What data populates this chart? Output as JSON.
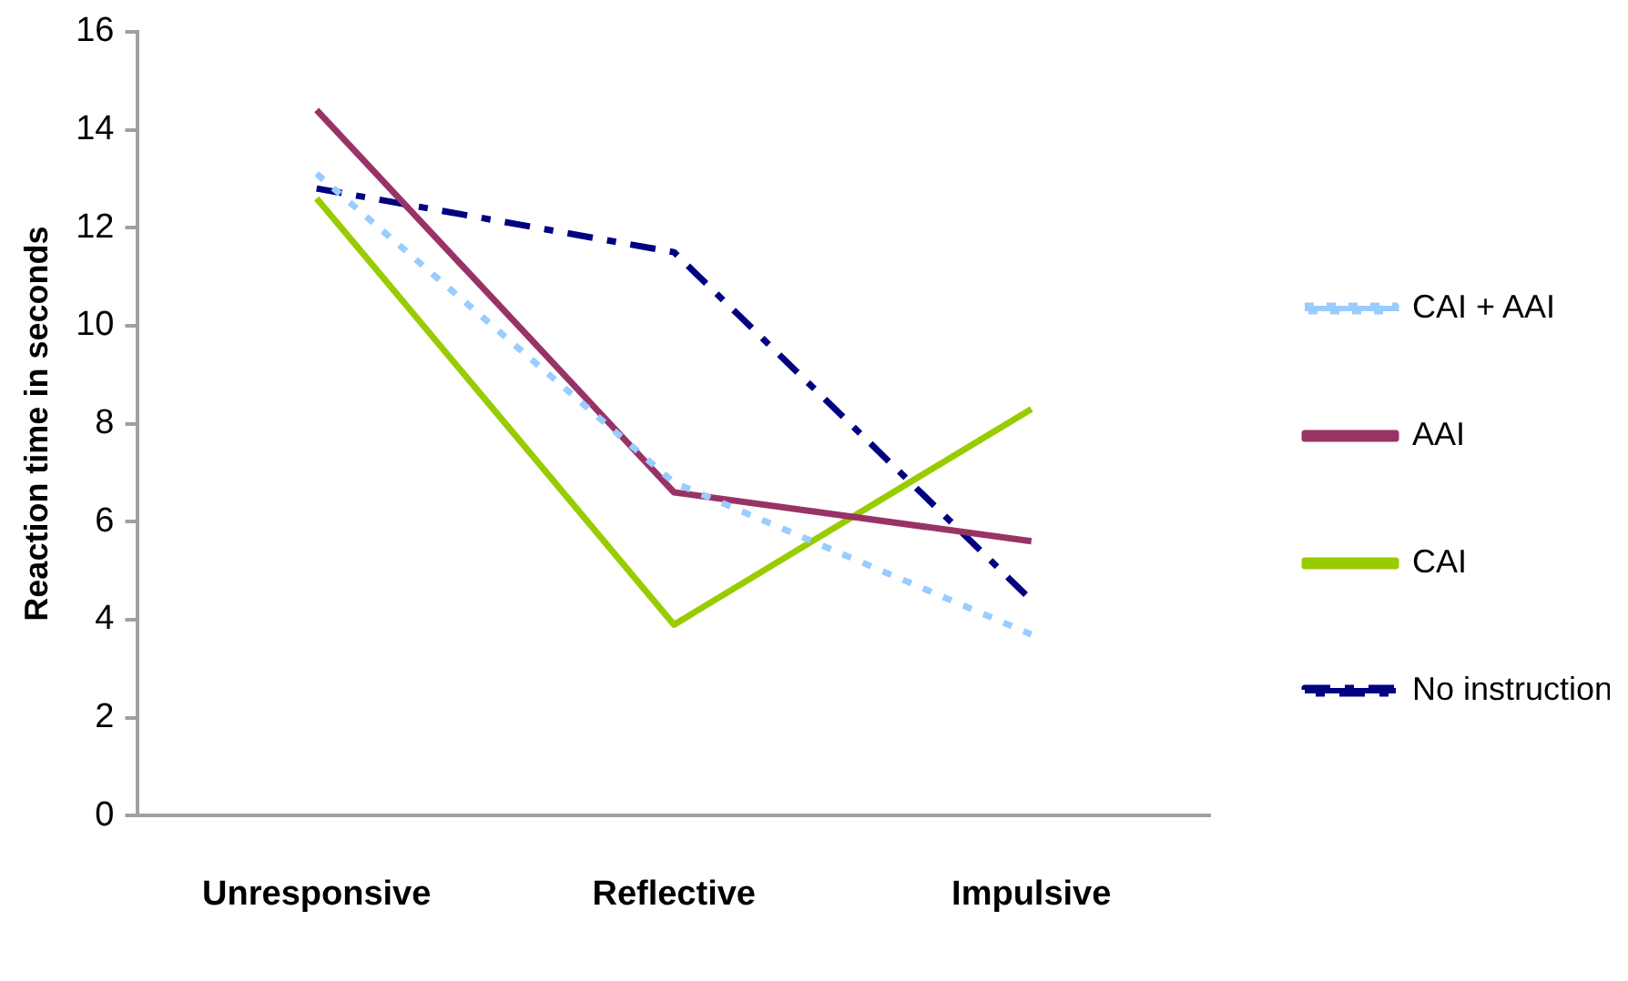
{
  "chart_data": {
    "type": "line",
    "ylabel": "Reaction time in seconds",
    "categories": [
      "Unresponsive",
      "Reflective",
      "Impulsive"
    ],
    "series": [
      {
        "name": "CAI + AAI",
        "color": "#99ccff",
        "line_style": "dotted",
        "values": [
          13.1,
          6.8,
          3.7
        ]
      },
      {
        "name": "AAI",
        "color": "#993366",
        "line_style": "solid",
        "values": [
          14.4,
          6.6,
          5.6
        ]
      },
      {
        "name": "CAI",
        "color": "#99cc00",
        "line_style": "solid",
        "values": [
          12.6,
          3.9,
          8.3
        ]
      },
      {
        "name": "No instruction",
        "color": "#000080",
        "line_style": "dashed",
        "values": [
          12.8,
          11.5,
          4.4
        ]
      }
    ],
    "ylim": [
      0,
      16
    ],
    "yticks": [
      0,
      2,
      4,
      6,
      8,
      10,
      12,
      14,
      16
    ],
    "grid": false,
    "legend": "right",
    "marker": "none"
  }
}
